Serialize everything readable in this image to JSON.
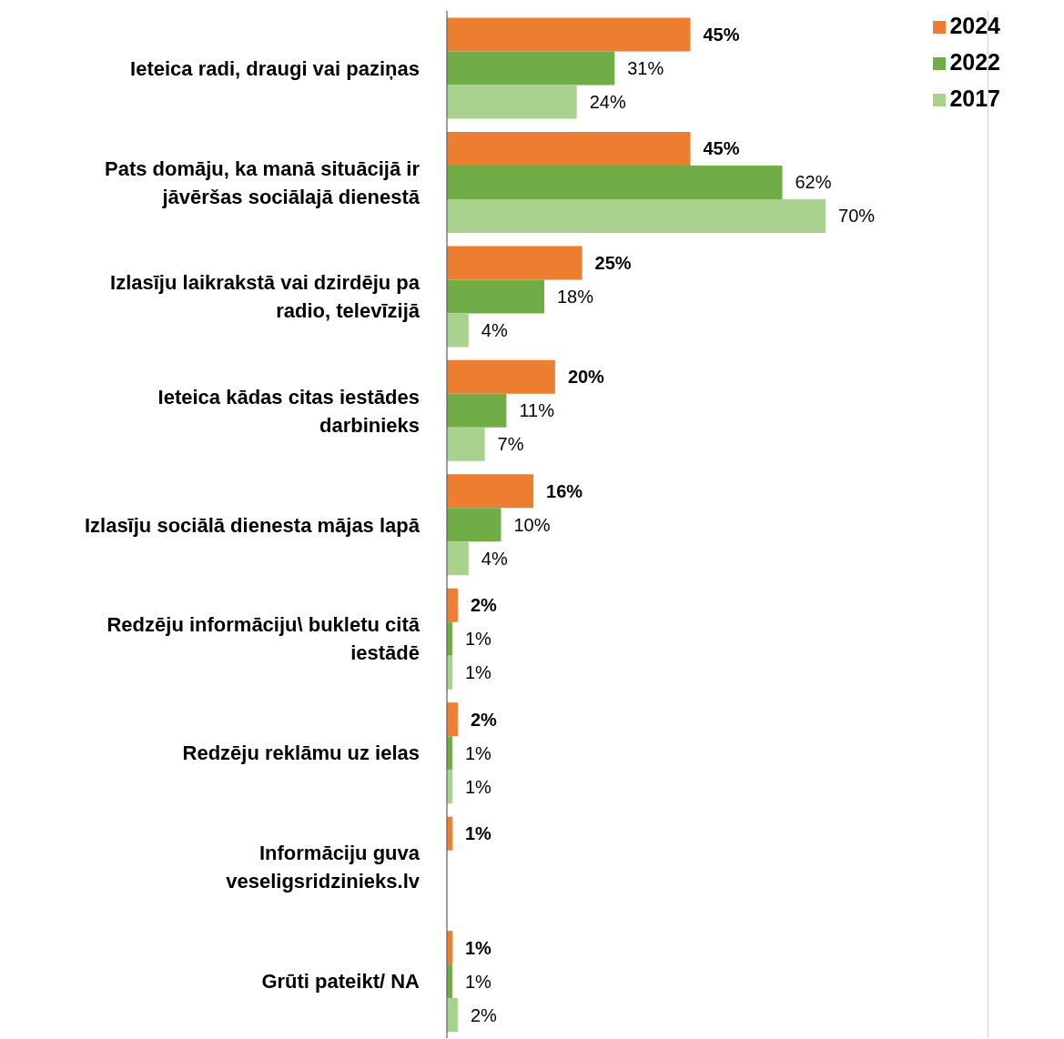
{
  "chart_data": {
    "type": "bar",
    "orientation": "horizontal",
    "categories": [
      "Ieteica radi, draugi vai paziņas",
      "Pats domāju, ka manā situācijā ir jāvēršas sociālajā dienestā",
      "Izlasīju laikrakstā vai dzirdēju pa radio, televīzijā",
      "Ieteica kādas citas iestādes darbinieks",
      "Izlasīju sociālā dienesta mājas lapā",
      "Redzēju informāciju\\ bukletu citā iestādē",
      "Redzēju reklāmu uz ielas",
      "Informāciju guva veseligsridzinieks.lv",
      "Grūti pateikt/ NA"
    ],
    "series": [
      {
        "name": "2024",
        "color": "#ed7d31",
        "values": [
          45,
          45,
          25,
          20,
          16,
          2,
          2,
          1,
          1
        ],
        "value_labels": [
          "45%",
          "45%",
          "25%",
          "20%",
          "16%",
          "2%",
          "2%",
          "1%",
          "1%"
        ]
      },
      {
        "name": "2022",
        "color": "#70ad47",
        "values": [
          31,
          62,
          18,
          11,
          10,
          1,
          1,
          null,
          1
        ],
        "value_labels": [
          "31%",
          "62%",
          "18%",
          "11%",
          "10%",
          "1%",
          "1%",
          null,
          "1%"
        ]
      },
      {
        "name": "2017",
        "color": "#a9d18e",
        "values": [
          24,
          70,
          4,
          7,
          4,
          1,
          1,
          null,
          2
        ],
        "value_labels": [
          "24%",
          "70%",
          "4%",
          "7%",
          "4%",
          "1%",
          "1%",
          null,
          "2%"
        ]
      }
    ],
    "xlim": [
      0,
      100
    ],
    "grid": "x",
    "legend": "top right",
    "tick_labels": "y"
  }
}
